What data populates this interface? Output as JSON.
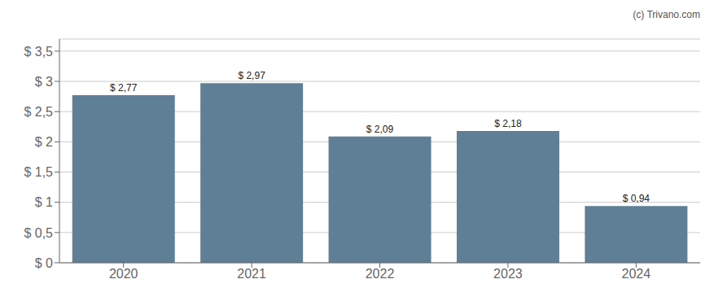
{
  "chart_data": {
    "type": "bar",
    "categories": [
      "2020",
      "2021",
      "2022",
      "2023",
      "2024"
    ],
    "values": [
      2.77,
      2.97,
      2.09,
      2.18,
      0.94
    ],
    "value_labels": [
      "$ 2,77",
      "$ 2,97",
      "$ 2,09",
      "$ 2,18",
      "$ 0,94"
    ],
    "color": "#5f7f96",
    "ylim": [
      0,
      3.7
    ],
    "yticks": [
      {
        "value": 0,
        "label": "$ 0"
      },
      {
        "value": 0.5,
        "label": "$ 0,5"
      },
      {
        "value": 1.0,
        "label": "$ 1"
      },
      {
        "value": 1.5,
        "label": "$ 1,5"
      },
      {
        "value": 2.0,
        "label": "$ 2"
      },
      {
        "value": 2.5,
        "label": "$ 2,5"
      },
      {
        "value": 3.0,
        "label": "$ 3"
      },
      {
        "value": 3.5,
        "label": "$ 3,5"
      }
    ],
    "grid": true,
    "data_labels": true,
    "annotations": [
      "(c) Trivano.com"
    ]
  }
}
